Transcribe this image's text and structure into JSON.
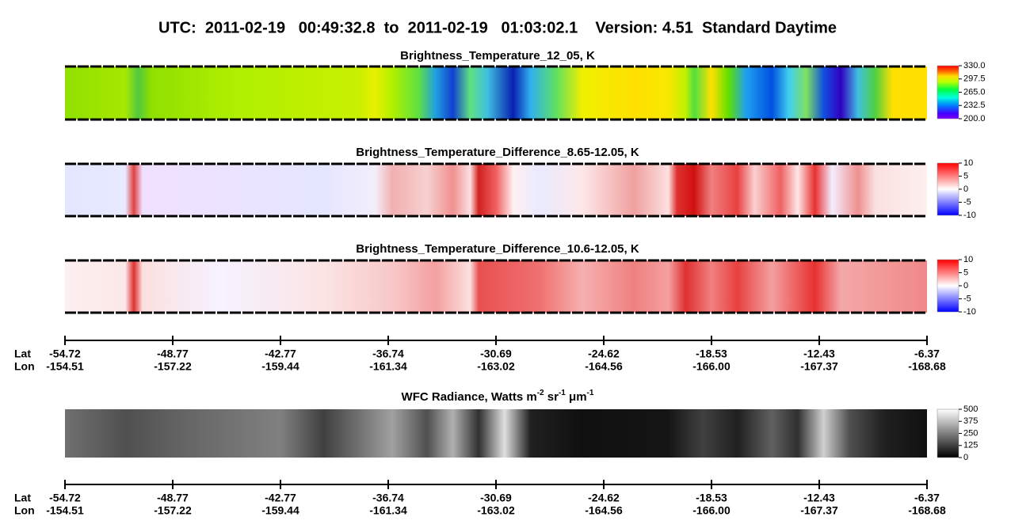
{
  "header": {
    "title": "UTC:  2011-02-19   00:49:32.8  to  2011-02-19   01:03:02.1    Version: 4.51  Standard Daytime"
  },
  "panels": [
    {
      "title": "Brightness_Temperature_12_05, K",
      "colorbar": [
        "330.0",
        "297.5",
        "265.0",
        "232.5",
        "200.0"
      ]
    },
    {
      "title": "Brightness_Temperature_Difference_8.65-12.05, K",
      "colorbar": [
        "10",
        "5",
        "0",
        "-5",
        "-10"
      ]
    },
    {
      "title": "Brightness_Temperature_Difference_10.6-12.05, K",
      "colorbar": [
        "10",
        "5",
        "0",
        "-5",
        "-10"
      ]
    },
    {
      "title_parts": [
        "WFC Radiance, Watts m",
        "-2",
        " sr",
        "-1",
        " μm",
        "-1"
      ],
      "colorbar": [
        "500",
        "375",
        "250",
        "125",
        "0"
      ]
    }
  ],
  "axes": [
    {
      "lat_label": "Lat",
      "lon_label": "Lon",
      "lat": [
        "-54.72",
        "-48.77",
        "-42.77",
        "-36.74",
        "-30.69",
        "-24.62",
        "-18.53",
        "-12.43",
        "-6.37"
      ],
      "lon": [
        "-154.51",
        "-157.22",
        "-159.44",
        "-161.34",
        "-163.02",
        "-164.56",
        "-166.00",
        "-167.37",
        "-168.68"
      ]
    },
    {
      "lat_label": "Lat",
      "lon_label": "Lon",
      "lat": [
        "-54.72",
        "-48.77",
        "-42.77",
        "-36.74",
        "-30.69",
        "-24.62",
        "-18.53",
        "-12.43",
        "-6.37"
      ],
      "lon": [
        "-154.51",
        "-157.22",
        "-159.44",
        "-161.34",
        "-163.02",
        "-164.56",
        "-166.00",
        "-167.37",
        "-168.68"
      ]
    }
  ]
}
